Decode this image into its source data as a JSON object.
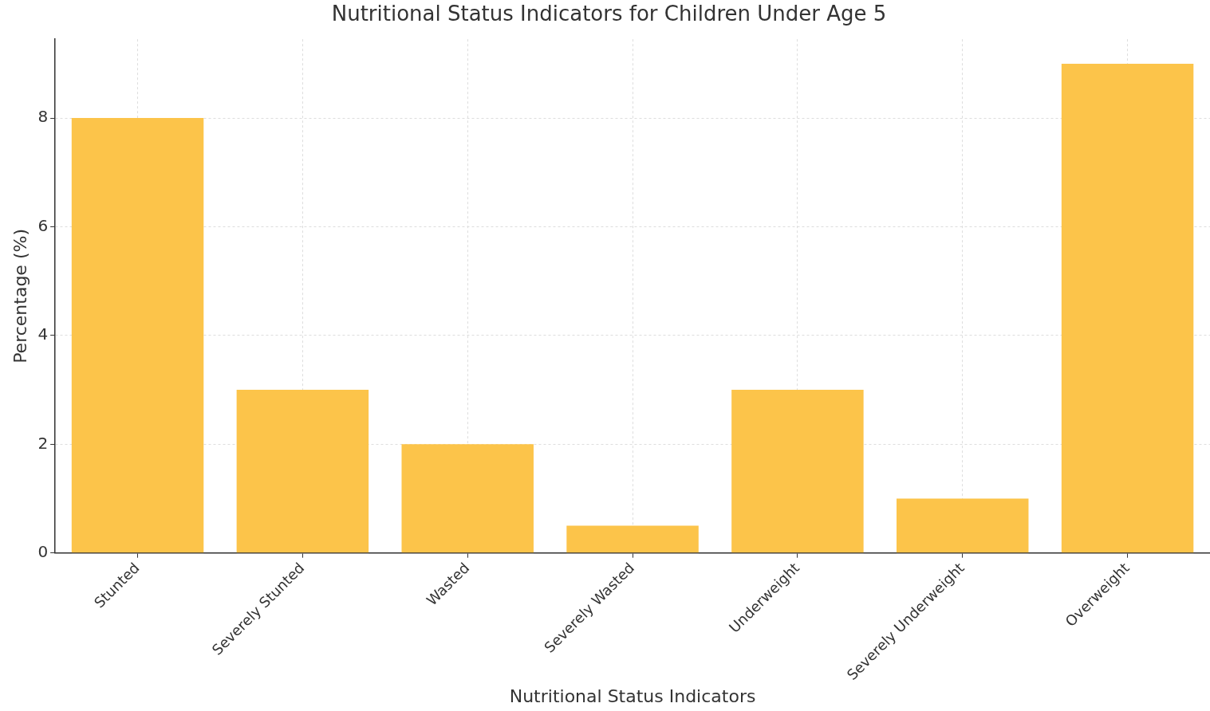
{
  "chart_data": {
    "type": "bar",
    "title": "Nutritional Status Indicators for Children Under Age 5",
    "xlabel": "Nutritional Status Indicators",
    "ylabel": "Percentage (%)",
    "categories": [
      "Stunted",
      "Severely Stunted",
      "Wasted",
      "Severely Wasted",
      "Underweight",
      "Severely Underweight",
      "Overweight"
    ],
    "values": [
      8,
      3,
      2,
      0.5,
      3,
      1,
      9
    ],
    "color": "#fcc44a",
    "ylim": [
      0,
      9.45
    ],
    "yticks": [
      0,
      2,
      4,
      6,
      8
    ],
    "grid": true,
    "legend": false
  }
}
